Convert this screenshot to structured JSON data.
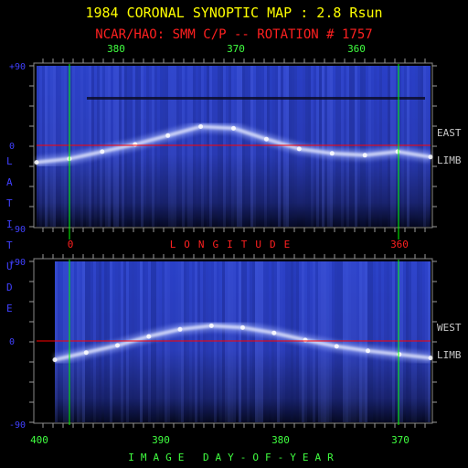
{
  "chart_data": {
    "type": "heatmap",
    "title": "1984 CORONAL SYNOPTIC MAP : 2.8 Rsun",
    "subtitle": "NCAR/HAO: SMM C/P -- ROTATION # 1757",
    "ylabel": "LATITUDE",
    "ylim": [
      -90,
      90
    ],
    "y_ticks": [
      "+90",
      "0",
      "-90"
    ],
    "colors": {
      "title": "#ffff00",
      "subtitle": "#ff2020",
      "top_ticks": "#40ff40",
      "axis_labels": "#4040ff",
      "longitude_label": "#ff2020",
      "day_label": "#40ff40",
      "limb_labels": "#c8c8c8",
      "marker_line": "#00ff00",
      "equator_line": "#ff0000",
      "map_background": "#2030a8"
    },
    "panels": [
      {
        "name": "east-limb",
        "limb_label": [
          "EAST",
          "LIMB"
        ],
        "top_axis": {
          "ticks": [
            "380",
            "370",
            "360"
          ]
        },
        "bottom_axis": {
          "label": "LONGITUDE",
          "ticks": [
            "0",
            "360"
          ]
        },
        "streamer_belt": {
          "longitude": [
            0,
            30,
            60,
            90,
            120,
            150,
            180,
            210,
            240,
            270,
            300,
            330,
            360
          ],
          "latitude": [
            -18,
            -14,
            -6,
            2,
            12,
            22,
            20,
            8,
            -3,
            -8,
            -10,
            -6,
            -12
          ]
        }
      },
      {
        "name": "west-limb",
        "limb_label": [
          "WEST",
          "LIMB"
        ],
        "bottom_axis": {
          "label": "IMAGE DAY-OF-YEAR",
          "ticks": [
            "400",
            "390",
            "380",
            "370"
          ]
        },
        "streamer_belt": {
          "longitude": [
            0,
            30,
            60,
            90,
            120,
            150,
            180,
            210,
            240,
            270,
            300,
            330,
            360
          ],
          "latitude": [
            -20,
            -12,
            -4,
            6,
            14,
            18,
            16,
            10,
            2,
            -5,
            -10,
            -14,
            -18
          ]
        }
      }
    ]
  }
}
